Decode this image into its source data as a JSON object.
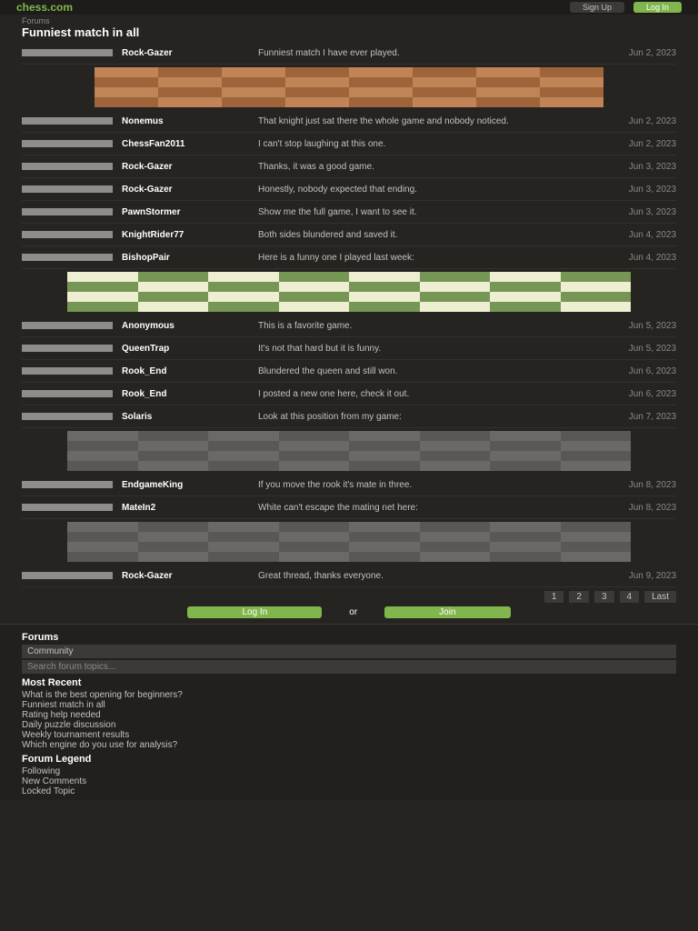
{
  "header": {
    "logo": "chess.com",
    "signup": "Sign Up",
    "login": "Log In"
  },
  "thread": {
    "breadcrumb": "Forums",
    "title": "Funniest match in all"
  },
  "posts": [
    {
      "author": "Rock-Gazer",
      "time": "Jun 2, 2023",
      "text": "Funniest match I have ever played."
    },
    {
      "author": "Nonemus",
      "time": "Jun 2, 2023",
      "text": "That knight just sat there the whole game and nobody noticed."
    },
    {
      "author": "ChessFan2011",
      "time": "Jun 2, 2023",
      "text": "I can't stop laughing at this one."
    },
    {
      "author": "Rock-Gazer",
      "time": "Jun 3, 2023",
      "text": "Thanks, it was a good game."
    },
    {
      "author": "Rock-Gazer",
      "time": "Jun 3, 2023",
      "text": "Honestly, nobody expected that ending."
    },
    {
      "author": "PawnStormer",
      "time": "Jun 3, 2023",
      "text": "Show me the full game, I want to see it."
    },
    {
      "author": "KnightRider77",
      "time": "Jun 4, 2023",
      "text": "Both sides blundered and saved it."
    },
    {
      "author": "BishopPair",
      "time": "Jun 4, 2023",
      "text": "Here is a funny one I played last week:"
    },
    {
      "author": "Anonymous",
      "time": "Jun 5, 2023",
      "text": "This is a favorite game."
    },
    {
      "author": "QueenTrap",
      "time": "Jun 5, 2023",
      "text": "It's not that hard but it is funny."
    },
    {
      "author": "Rook_End",
      "time": "Jun 6, 2023",
      "text": "Blundered the queen and still won."
    },
    {
      "author": "Rook_End",
      "time": "Jun 6, 2023",
      "text": "I posted a new one here, check it out."
    },
    {
      "author": "Solaris",
      "time": "Jun 7, 2023",
      "text": "Look at this position from my game:"
    },
    {
      "author": "EndgameKing",
      "time": "Jun 8, 2023",
      "text": "If you move the rook it's mate in three."
    },
    {
      "author": "MateIn2",
      "time": "Jun 8, 2023",
      "text": "White can't escape the mating net here:"
    },
    {
      "author": "Rock-Gazer",
      "time": "Jun 9, 2023",
      "text": "Great thread, thanks everyone."
    }
  ],
  "pagination": [
    "1",
    "2",
    "3",
    "4",
    "Last"
  ],
  "actions": {
    "login": "Log In",
    "or": "or",
    "join": "Join"
  },
  "sidebar": {
    "forums": "Forums",
    "category": "Community",
    "search": "Search forum topics...",
    "recent_title": "Most Recent",
    "recent": [
      "What is the best opening for beginners?",
      "Funniest match in all",
      "Rating help needed",
      "Daily puzzle discussion",
      "Weekly tournament results",
      "Which engine do you use for analysis?"
    ],
    "legend_title": "Forum Legend",
    "legend": [
      "Following",
      "New Comments",
      "Locked Topic"
    ]
  }
}
